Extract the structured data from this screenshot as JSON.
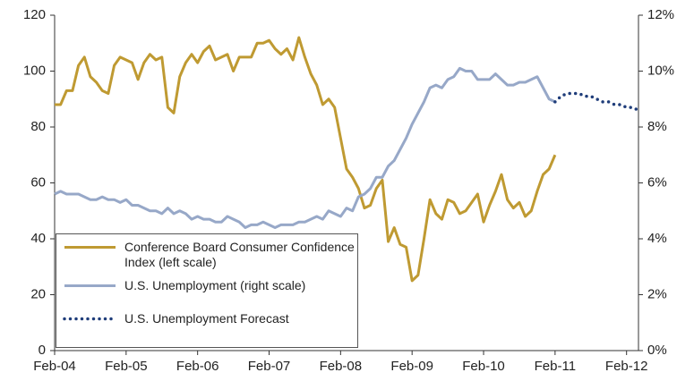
{
  "chart_data": {
    "type": "line",
    "categories": [
      "Feb-04",
      null,
      null,
      null,
      null,
      null,
      null,
      null,
      null,
      null,
      null,
      null,
      "Feb-05",
      null,
      null,
      null,
      null,
      null,
      null,
      null,
      null,
      null,
      null,
      null,
      "Feb-06",
      null,
      null,
      null,
      null,
      null,
      null,
      null,
      null,
      null,
      null,
      null,
      "Feb-07",
      null,
      null,
      null,
      null,
      null,
      null,
      null,
      null,
      null,
      null,
      null,
      "Feb-08",
      null,
      null,
      null,
      null,
      null,
      null,
      null,
      null,
      null,
      null,
      null,
      "Feb-09",
      null,
      null,
      null,
      null,
      null,
      null,
      null,
      null,
      null,
      null,
      null,
      "Feb-10",
      null,
      null,
      null,
      null,
      null,
      null,
      null,
      null,
      null,
      null,
      null,
      "Feb-11",
      null,
      null,
      null,
      null,
      null,
      null,
      null,
      null,
      null,
      null,
      null,
      "Feb-12",
      null,
      null
    ],
    "ylim": [
      0,
      120
    ],
    "yticks": [
      0,
      20,
      40,
      60,
      80,
      100,
      120
    ],
    "y2lim": [
      0,
      12
    ],
    "y2ticks": [
      {
        "value": 0,
        "label": "0%"
      },
      {
        "value": 2,
        "label": "2%"
      },
      {
        "value": 4,
        "label": "4%"
      },
      {
        "value": 6,
        "label": "6%"
      },
      {
        "value": 8,
        "label": "8%"
      },
      {
        "value": 10,
        "label": "10%"
      },
      {
        "value": 12,
        "label": "12%"
      }
    ],
    "grid": false,
    "legend": "lower left",
    "series": [
      {
        "name": "Conference Board Consumer Confidence Index (left scale)",
        "color": "#bf9a32",
        "style": "solid",
        "values": [
          88,
          88,
          93,
          93,
          102,
          105,
          98,
          96,
          93,
          92,
          102,
          105,
          104,
          103,
          97,
          103,
          106,
          104,
          105,
          87,
          85,
          98,
          103,
          106,
          103,
          107,
          109,
          104,
          105,
          106,
          100,
          105,
          105,
          105,
          110,
          110,
          111,
          108,
          106,
          108,
          104,
          112,
          105,
          99,
          95,
          88,
          90,
          87,
          76,
          65,
          62,
          58,
          51,
          52,
          58,
          61,
          39,
          44,
          38,
          37,
          25,
          27,
          40,
          54,
          49,
          47,
          54,
          53,
          49,
          50,
          53,
          56,
          46,
          52,
          57,
          63,
          54,
          51,
          53,
          48,
          50,
          57,
          63,
          65,
          70,
          null,
          null,
          null,
          null,
          null,
          null,
          null,
          null,
          null,
          null,
          null,
          null,
          null,
          null
        ]
      },
      {
        "name": "U.S. Unemployment (right scale)",
        "color": "#97a8c8",
        "style": "solid",
        "axis": "y2",
        "values": [
          5.6,
          5.7,
          5.6,
          5.6,
          5.6,
          5.5,
          5.4,
          5.4,
          5.5,
          5.4,
          5.4,
          5.3,
          5.4,
          5.2,
          5.2,
          5.1,
          5.0,
          5.0,
          4.9,
          5.1,
          4.9,
          5.0,
          4.9,
          4.7,
          4.8,
          4.7,
          4.7,
          4.6,
          4.6,
          4.8,
          4.7,
          4.6,
          4.4,
          4.5,
          4.5,
          4.6,
          4.5,
          4.4,
          4.5,
          4.5,
          4.5,
          4.6,
          4.6,
          4.7,
          4.8,
          4.7,
          5.0,
          4.9,
          4.8,
          5.1,
          5.0,
          5.5,
          5.6,
          5.8,
          6.2,
          6.2,
          6.6,
          6.8,
          7.2,
          7.6,
          8.1,
          8.5,
          8.9,
          9.4,
          9.5,
          9.4,
          9.7,
          9.8,
          10.1,
          10.0,
          10.0,
          9.7,
          9.7,
          9.7,
          9.9,
          9.7,
          9.5,
          9.5,
          9.6,
          9.6,
          9.7,
          9.8,
          9.4,
          9.0,
          8.9,
          null,
          null,
          null,
          null,
          null,
          null,
          null,
          null,
          null,
          null,
          null,
          null,
          null,
          null
        ]
      },
      {
        "name": "U.S. Unemployment Forecast",
        "color": "#1f3d7a",
        "style": "dotted",
        "axis": "y2",
        "values": [
          null,
          null,
          null,
          null,
          null,
          null,
          null,
          null,
          null,
          null,
          null,
          null,
          null,
          null,
          null,
          null,
          null,
          null,
          null,
          null,
          null,
          null,
          null,
          null,
          null,
          null,
          null,
          null,
          null,
          null,
          null,
          null,
          null,
          null,
          null,
          null,
          null,
          null,
          null,
          null,
          null,
          null,
          null,
          null,
          null,
          null,
          null,
          null,
          null,
          null,
          null,
          null,
          null,
          null,
          null,
          null,
          null,
          null,
          null,
          null,
          null,
          null,
          null,
          null,
          null,
          null,
          null,
          null,
          null,
          null,
          null,
          null,
          null,
          null,
          null,
          null,
          null,
          null,
          null,
          null,
          null,
          null,
          null,
          null,
          8.9,
          9.1,
          9.2,
          9.2,
          9.2,
          9.1,
          9.1,
          9.0,
          8.9,
          8.9,
          8.8,
          8.8,
          8.7,
          8.7,
          8.6
        ]
      }
    ]
  }
}
